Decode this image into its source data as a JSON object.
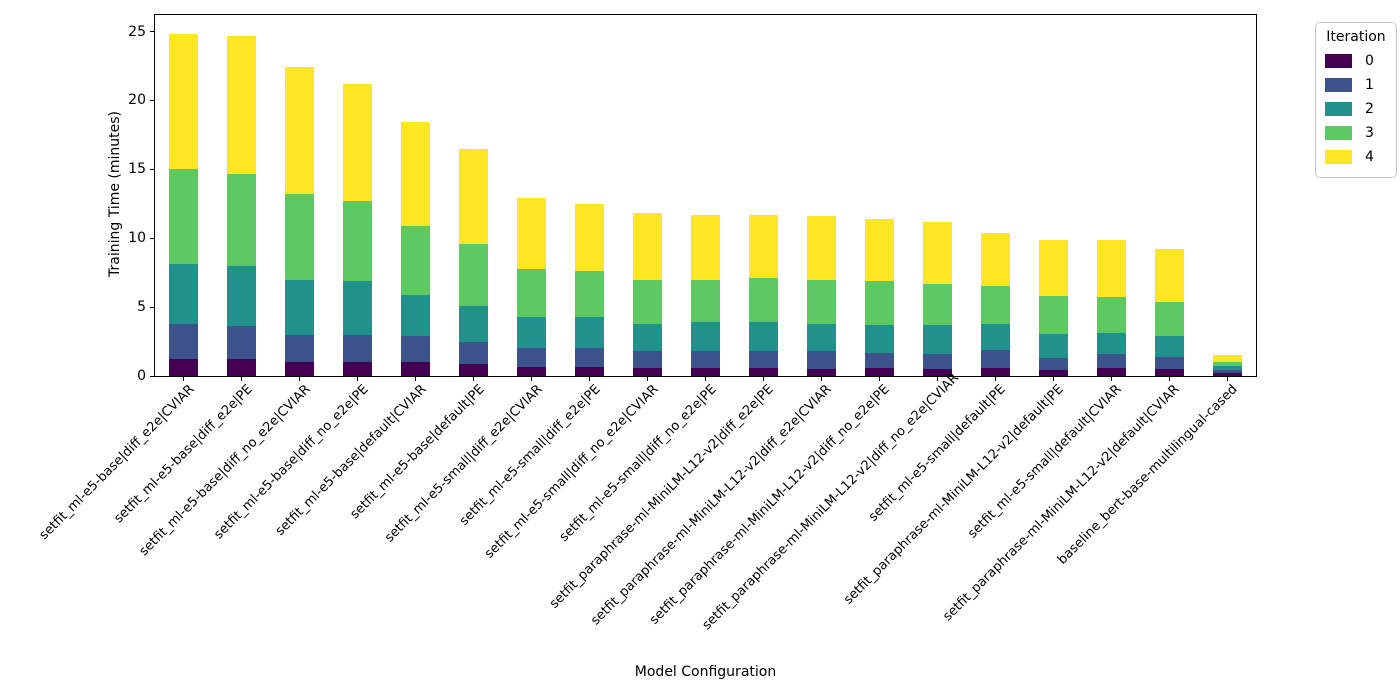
{
  "chart_data": {
    "type": "bar",
    "stacked": true,
    "title": "",
    "xlabel": "Model Configuration",
    "ylabel": "Training Time (minutes)",
    "legend_title": "Iteration",
    "legend_position": "outside upper right",
    "grid": false,
    "ylim": [
      0,
      26.2
    ],
    "yticks": [
      0,
      5,
      10,
      15,
      20,
      25
    ],
    "colors": [
      "#440154",
      "#3b528b",
      "#21918c",
      "#5ec962",
      "#fde725"
    ],
    "categories": [
      "setfit_ml-e5-base|diff_e2e|CVIAR",
      "setfit_ml-e5-base|diff_e2e|PE",
      "setfit_ml-e5-base|diff_no_e2e|CVIAR",
      "setfit_ml-e5-base|diff_no_e2e|PE",
      "setfit_ml-e5-base|default|CVIAR",
      "setfit_ml-e5-base|default|PE",
      "setfit_ml-e5-small|diff_e2e|CVIAR",
      "setfit_ml-e5-small|diff_e2e|PE",
      "setfit_ml-e5-small|diff_no_e2e|CVIAR",
      "setfit_ml-e5-small|diff_no_e2e|PE",
      "setfit_paraphrase-ml-MiniLM-L12-v2|diff_e2e|PE",
      "setfit_paraphrase-ml-MiniLM-L12-v2|diff_e2e|CVIAR",
      "setfit_paraphrase-ml-MiniLM-L12-v2|diff_no_e2e|PE",
      "setfit_paraphrase-ml-MiniLM-L12-v2|diff_no_e2e|CVIAR",
      "setfit_ml-e5-small|default|PE",
      "setfit_paraphrase-ml-MiniLM-L12-v2|default|PE",
      "setfit_ml-e5-small|default|CVIAR",
      "setfit_paraphrase-ml-MiniLM-L12-v2|default|CVIAR",
      "baseline_bert-base-multilingual-cased"
    ],
    "series": [
      {
        "name": "0",
        "color": "#440154",
        "values": [
          1.25,
          1.25,
          1.0,
          1.0,
          1.0,
          0.9,
          0.65,
          0.65,
          0.55,
          0.55,
          0.55,
          0.5,
          0.6,
          0.5,
          0.6,
          0.4,
          0.6,
          0.5,
          0.2
        ]
      },
      {
        "name": "1",
        "color": "#3b528b",
        "values": [
          2.5,
          2.4,
          2.0,
          2.0,
          1.9,
          1.6,
          1.35,
          1.35,
          1.25,
          1.25,
          1.25,
          1.3,
          1.1,
          1.1,
          1.3,
          0.9,
          1.0,
          0.9,
          0.22
        ]
      },
      {
        "name": "2",
        "color": "#21918c",
        "values": [
          4.4,
          4.3,
          4.0,
          3.9,
          3.0,
          2.6,
          2.3,
          2.3,
          2.0,
          2.1,
          2.1,
          2.0,
          2.0,
          2.1,
          1.9,
          1.75,
          1.5,
          1.5,
          0.28
        ]
      },
      {
        "name": "3",
        "color": "#5ec962",
        "values": [
          6.85,
          6.7,
          6.2,
          5.8,
          5.0,
          4.5,
          3.5,
          3.3,
          3.2,
          3.1,
          3.2,
          3.2,
          3.2,
          3.0,
          2.7,
          2.75,
          2.6,
          2.5,
          0.33
        ]
      },
      {
        "name": "4",
        "color": "#fde725",
        "values": [
          9.8,
          10.05,
          9.2,
          8.5,
          7.5,
          6.9,
          5.1,
          4.9,
          4.8,
          4.7,
          4.6,
          4.6,
          4.5,
          4.5,
          3.9,
          4.1,
          4.15,
          3.8,
          0.5
        ]
      }
    ],
    "bar_totals": [
      24.8,
      24.7,
      22.4,
      21.2,
      18.4,
      16.5,
      12.9,
      12.5,
      11.8,
      11.7,
      11.7,
      11.6,
      11.4,
      11.2,
      10.4,
      9.9,
      9.85,
      9.2,
      1.53
    ]
  }
}
